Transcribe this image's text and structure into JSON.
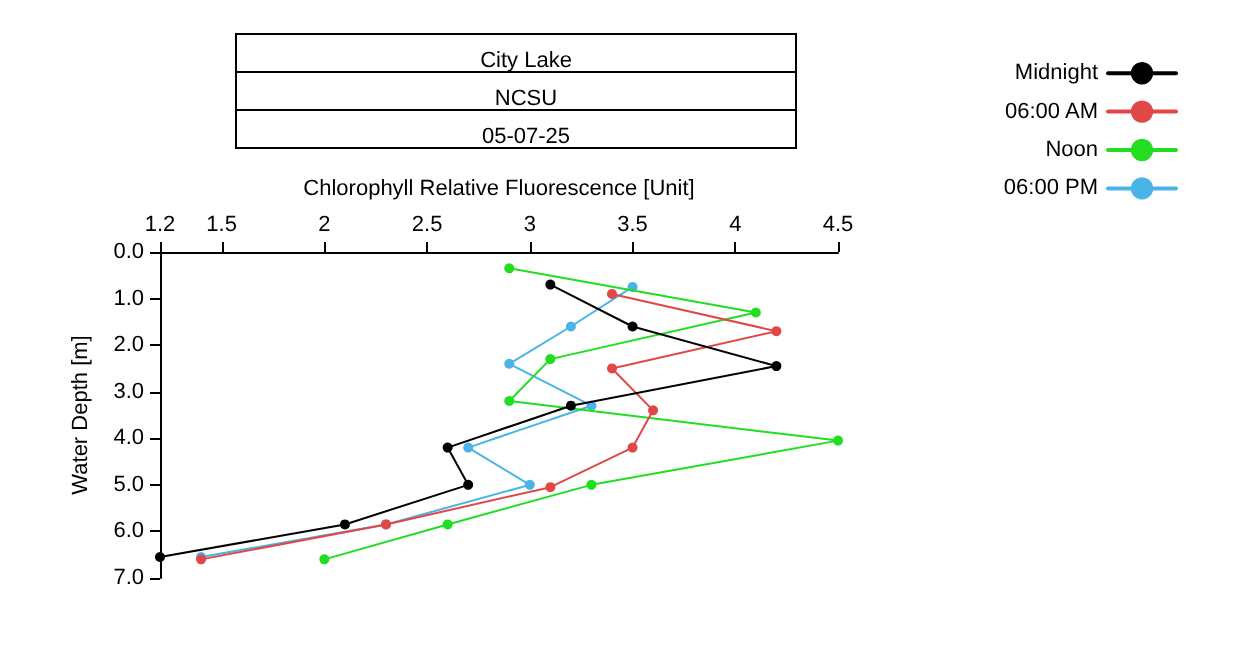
{
  "chart_data": {
    "type": "line",
    "title": "City Lake",
    "subtitle": "NCSU",
    "annotations": [
      "05-07-25"
    ],
    "xlabel": "Chlorophyll Relative Fluorescence [Unit]",
    "ylabel": "Water Depth [m]",
    "xlim": [
      1.2,
      4.5
    ],
    "xticks": [
      1.2,
      1.5,
      2,
      2.5,
      3,
      3.5,
      4,
      4.5
    ],
    "ylim": [
      7,
      0
    ],
    "yticks": [
      {
        "value": 0,
        "label": "0.0"
      },
      {
        "value": 1,
        "label": "1.0"
      },
      {
        "value": 2,
        "label": "2.0"
      },
      {
        "value": 3,
        "label": "3.0"
      },
      {
        "value": 4,
        "label": "4.0"
      },
      {
        "value": 5,
        "label": "5.0"
      },
      {
        "value": 6,
        "label": "6.0"
      },
      {
        "value": 7,
        "label": "7.0"
      }
    ],
    "grid": false,
    "legend": "right",
    "marker": "circle",
    "line_style": "solid",
    "series": [
      {
        "name": "Midnight",
        "color": "#000000",
        "x": [
          3.1,
          3.5,
          4.2,
          3.2,
          2.6,
          2.7,
          2.1,
          1.2
        ],
        "values": [
          0.7,
          1.6,
          2.45,
          3.3,
          4.2,
          5.0,
          5.85,
          6.55
        ]
      },
      {
        "name": "06:00 AM",
        "color": "#e04848",
        "x": [
          3.4,
          4.2,
          3.4,
          3.6,
          3.5,
          3.1,
          2.3,
          1.4
        ],
        "values": [
          0.9,
          1.7,
          2.5,
          3.4,
          4.2,
          5.05,
          5.85,
          6.6
        ]
      },
      {
        "name": "Noon",
        "color": "#22dd22",
        "x": [
          2.9,
          4.1,
          3.1,
          2.9,
          4.5,
          3.3,
          2.6,
          2.0
        ],
        "values": [
          0.35,
          1.3,
          2.3,
          3.2,
          4.05,
          5.0,
          5.85,
          6.6
        ]
      },
      {
        "name": "06:00 PM",
        "color": "#4ab4e8",
        "x": [
          3.5,
          3.2,
          2.9,
          3.3,
          2.7,
          3.0,
          2.3,
          1.4
        ],
        "values": [
          0.75,
          1.6,
          2.4,
          3.3,
          4.2,
          5.0,
          5.85,
          6.55
        ]
      }
    ]
  }
}
